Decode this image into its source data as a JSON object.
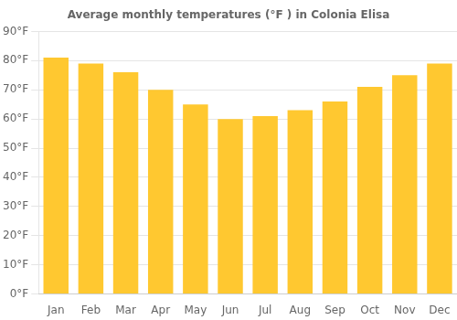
{
  "chart_data": {
    "type": "bar",
    "title": "Average monthly temperatures (°F ) in Colonia Elisa",
    "categories": [
      "Jan",
      "Feb",
      "Mar",
      "Apr",
      "May",
      "Jun",
      "Jul",
      "Aug",
      "Sep",
      "Oct",
      "Nov",
      "Dec"
    ],
    "values": [
      81,
      79,
      76,
      70,
      65,
      60,
      61,
      63,
      66,
      71,
      75,
      79
    ],
    "color": "#FFC830",
    "ylim": [
      0,
      90
    ],
    "yticks": [
      {
        "value": 0,
        "label": "0°F"
      },
      {
        "value": 10,
        "label": "10°F"
      },
      {
        "value": 20,
        "label": "20°F"
      },
      {
        "value": 30,
        "label": "30°F"
      },
      {
        "value": 40,
        "label": "40°F"
      },
      {
        "value": 50,
        "label": "50°F"
      },
      {
        "value": 60,
        "label": "60°F"
      },
      {
        "value": 70,
        "label": "70°F"
      },
      {
        "value": 80,
        "label": "80°F"
      },
      {
        "value": 90,
        "label": "90°F"
      }
    ],
    "grid": true
  }
}
